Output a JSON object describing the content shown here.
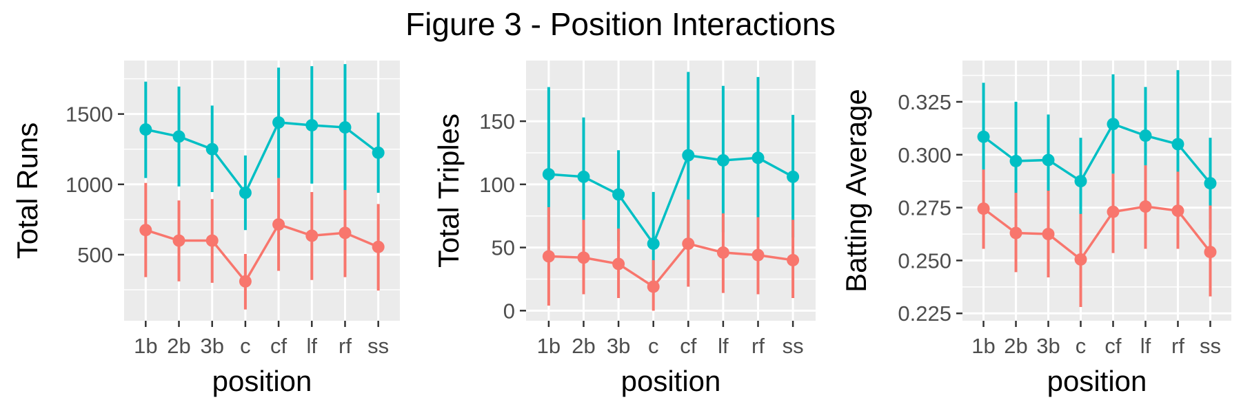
{
  "title": "Figure 3 - Position Interactions",
  "colors": {
    "panel_bg": "#ebebeb",
    "grid": "#ffffff",
    "series_low": "#f8766d",
    "series_high": "#00bfc4",
    "tick": "#333333"
  },
  "chart_data": [
    {
      "type": "line",
      "xlabel": "position",
      "ylabel": "Total Runs",
      "categories": [
        "1b",
        "2b",
        "3b",
        "c",
        "cf",
        "lf",
        "rf",
        "ss"
      ],
      "ylim": [
        30,
        1880
      ],
      "yticks": [
        500,
        1000,
        1500
      ],
      "ytick_labels": [
        "500",
        "1000",
        "1500"
      ],
      "grid": true,
      "series": [
        {
          "color": "#00bfc4",
          "values": [
            1390,
            1340,
            1250,
            940,
            1440,
            1420,
            1405,
            1225
          ],
          "lower": [
            1045,
            985,
            945,
            675,
            1045,
            1005,
            955,
            940
          ],
          "upper": [
            1730,
            1695,
            1560,
            1205,
            1830,
            1840,
            1855,
            1510
          ]
        },
        {
          "color": "#f8766d",
          "values": [
            675,
            600,
            600,
            310,
            715,
            635,
            655,
            555
          ],
          "lower": [
            340,
            310,
            300,
            110,
            385,
            320,
            340,
            245
          ],
          "upper": [
            1010,
            885,
            895,
            505,
            1045,
            945,
            960,
            860
          ]
        }
      ]
    },
    {
      "type": "line",
      "xlabel": "position",
      "ylabel": "Total Triples",
      "categories": [
        "1b",
        "2b",
        "3b",
        "c",
        "cf",
        "lf",
        "rf",
        "ss"
      ],
      "ylim": [
        -8,
        198
      ],
      "yticks": [
        0,
        50,
        100,
        150
      ],
      "ytick_labels": [
        "0",
        "50",
        "100",
        "150"
      ],
      "grid": true,
      "series": [
        {
          "color": "#00bfc4",
          "values": [
            108,
            106,
            92,
            53,
            123,
            119,
            121,
            106
          ],
          "lower": [
            40,
            58,
            55,
            14,
            58,
            62,
            58,
            58
          ],
          "upper": [
            177,
            153,
            127,
            94,
            189,
            178,
            185,
            155
          ]
        },
        {
          "color": "#f8766d",
          "values": [
            43,
            42,
            37,
            19,
            53,
            46,
            44,
            40
          ],
          "lower": [
            4,
            13,
            10,
            0,
            19,
            14,
            13,
            10
          ],
          "upper": [
            82,
            72,
            65,
            40,
            88,
            77,
            74,
            72
          ]
        }
      ]
    },
    {
      "type": "line",
      "xlabel": "position",
      "ylabel": "Batting Average",
      "categories": [
        "1b",
        "2b",
        "3b",
        "c",
        "cf",
        "lf",
        "rf",
        "ss"
      ],
      "ylim": [
        0.2215,
        0.3445
      ],
      "yticks": [
        0.225,
        0.25,
        0.275,
        0.3,
        0.325
      ],
      "ytick_labels": [
        "0.225",
        "0.250",
        "0.275",
        "0.300",
        "0.325"
      ],
      "grid": true,
      "series": [
        {
          "color": "#00bfc4",
          "values": [
            0.3085,
            0.297,
            0.2975,
            0.2875,
            0.3145,
            0.309,
            0.305,
            0.2865
          ],
          "lower": [
            0.283,
            0.27,
            0.276,
            0.267,
            0.291,
            0.286,
            0.271,
            0.265
          ],
          "upper": [
            0.334,
            0.325,
            0.319,
            0.308,
            0.338,
            0.332,
            0.34,
            0.308
          ]
        },
        {
          "color": "#f8766d",
          "values": [
            0.2745,
            0.263,
            0.2625,
            0.2505,
            0.273,
            0.2755,
            0.2735,
            0.254
          ],
          "lower": [
            0.2555,
            0.2445,
            0.242,
            0.228,
            0.2535,
            0.2555,
            0.2555,
            0.233
          ],
          "upper": [
            0.293,
            0.282,
            0.283,
            0.272,
            0.291,
            0.295,
            0.292,
            0.276
          ]
        }
      ]
    }
  ]
}
